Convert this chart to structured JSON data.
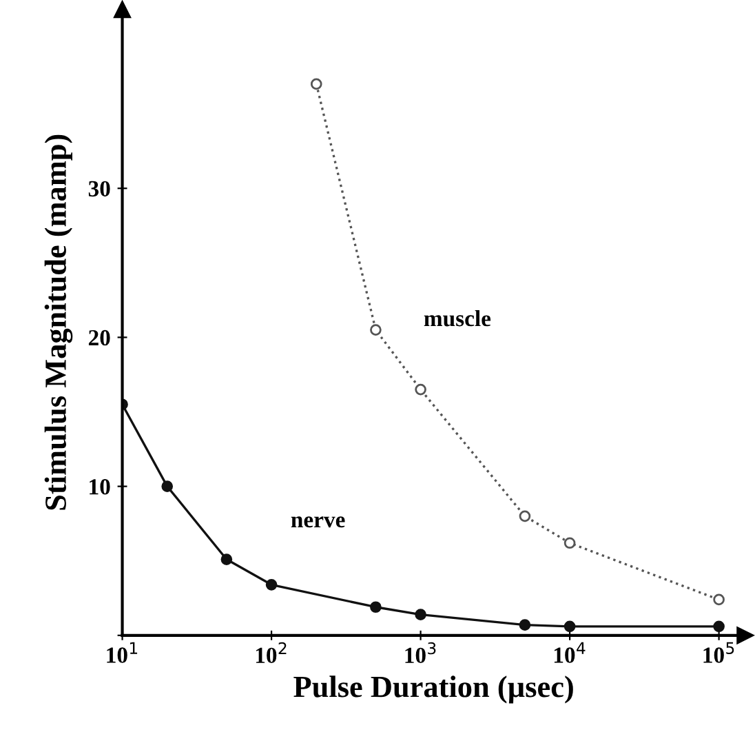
{
  "chart_data": {
    "type": "line",
    "xlabel": "Pulse Duration (µsec)",
    "ylabel": "Stimulus Magnitude (mamp)",
    "log": "x",
    "xlim": [
      10,
      150000
    ],
    "ylim": [
      0,
      42
    ],
    "xticks": [
      {
        "value": 10,
        "label": "10$^{1}$"
      },
      {
        "value": 100,
        "label": "10$^{2}$"
      },
      {
        "value": 1000,
        "label": "10$^{3}$"
      },
      {
        "value": 10000,
        "label": "10$^{4}$"
      },
      {
        "value": 100000,
        "label": "10$^{5}$"
      }
    ],
    "yticks": [
      {
        "value": 0,
        "label": null
      },
      10,
      20,
      30
    ],
    "grid": false,
    "legend": false,
    "series": [
      {
        "name": "nerve",
        "color": "#111111",
        "marker": "circle",
        "line_style": "solid",
        "x": [
          10,
          20,
          50,
          100,
          500,
          1000,
          5000,
          10000,
          100000
        ],
        "values": [
          15.5,
          10.0,
          5.1,
          3.4,
          1.9,
          1.4,
          0.7,
          0.6,
          0.6
        ]
      },
      {
        "name": "muscle",
        "color": "#555555",
        "marker": "circle",
        "line_style": "dotted",
        "x": [
          200,
          500,
          1000,
          5000,
          10000,
          100000
        ],
        "values": [
          37.0,
          20.5,
          16.5,
          8.0,
          6.2,
          2.4
        ]
      }
    ]
  }
}
